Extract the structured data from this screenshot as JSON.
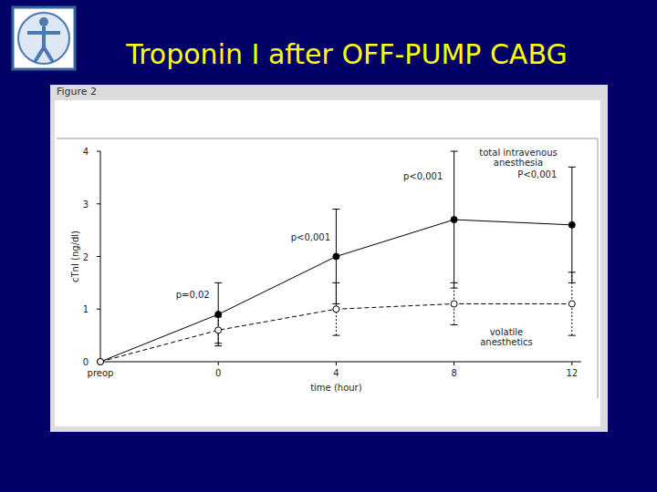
{
  "chart_data": {
    "type": "line",
    "title": "Troponin I after OFF-PUMP CABG",
    "subtitle": "Figure 2",
    "x_label": "time (hour)",
    "y_label": "cTnI (ng/dl)",
    "categories": [
      "preop",
      "0",
      "4",
      "8",
      "12"
    ],
    "ylim": [
      0,
      4
    ],
    "yticks": [
      0,
      1,
      2,
      3,
      4
    ],
    "grid": false,
    "series": [
      {
        "name": "total intravenous anesthesia",
        "color": "#000000",
        "marker": "filled",
        "line_style": "solid",
        "values": [
          0,
          0.9,
          2.0,
          2.7,
          2.6
        ],
        "errors": [
          0,
          0.6,
          0.9,
          1.3,
          1.1
        ]
      },
      {
        "name": "volatile anesthetics",
        "color": "#000000",
        "marker": "open",
        "line_style": "dashed",
        "values": [
          0,
          0.6,
          1.0,
          1.1,
          1.1
        ],
        "errors": [
          0,
          0.25,
          0.5,
          0.4,
          0.6
        ]
      }
    ],
    "annotations": [
      {
        "text": "p=0,02",
        "x": "0"
      },
      {
        "text": "p<0,001",
        "x": "4"
      },
      {
        "text": "p<0,001",
        "x": "8"
      },
      {
        "text": "P<0,001",
        "x": "12"
      }
    ]
  }
}
